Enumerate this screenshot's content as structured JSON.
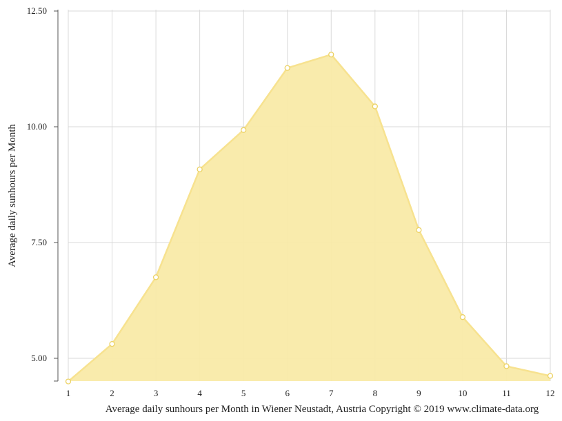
{
  "chart_data": {
    "type": "area",
    "title": "",
    "xlabel": "Average daily sunhours per Month in Wiener Neustadt, Austria Copyright © 2019 www.climate-data.org",
    "ylabel": "Average daily sunhours per Month",
    "x": [
      1,
      2,
      3,
      4,
      5,
      6,
      7,
      8,
      9,
      10,
      11,
      12
    ],
    "x_tick_labels": [
      "1",
      "2",
      "3",
      "4",
      "5",
      "6",
      "7",
      "8",
      "9",
      "10",
      "11",
      "12"
    ],
    "y_ticks": [
      5.0,
      7.5,
      10.0,
      12.5
    ],
    "y_tick_labels": [
      "5.00",
      "7.50",
      "10.00",
      "12.50"
    ],
    "ylim": [
      4.5,
      12.5
    ],
    "xlim": [
      1,
      12
    ],
    "grid": true,
    "legend": "none",
    "series": [
      {
        "values": [
          4.5,
          5.31,
          6.75,
          9.08,
          9.93,
          11.27,
          11.56,
          10.44,
          7.77,
          5.89,
          4.83,
          4.62
        ],
        "fill_color": "#f9eaa8",
        "line_color": "#f7e28f",
        "marker_stroke": "#ecd263",
        "marker_fill": "#ffffff"
      }
    ]
  }
}
